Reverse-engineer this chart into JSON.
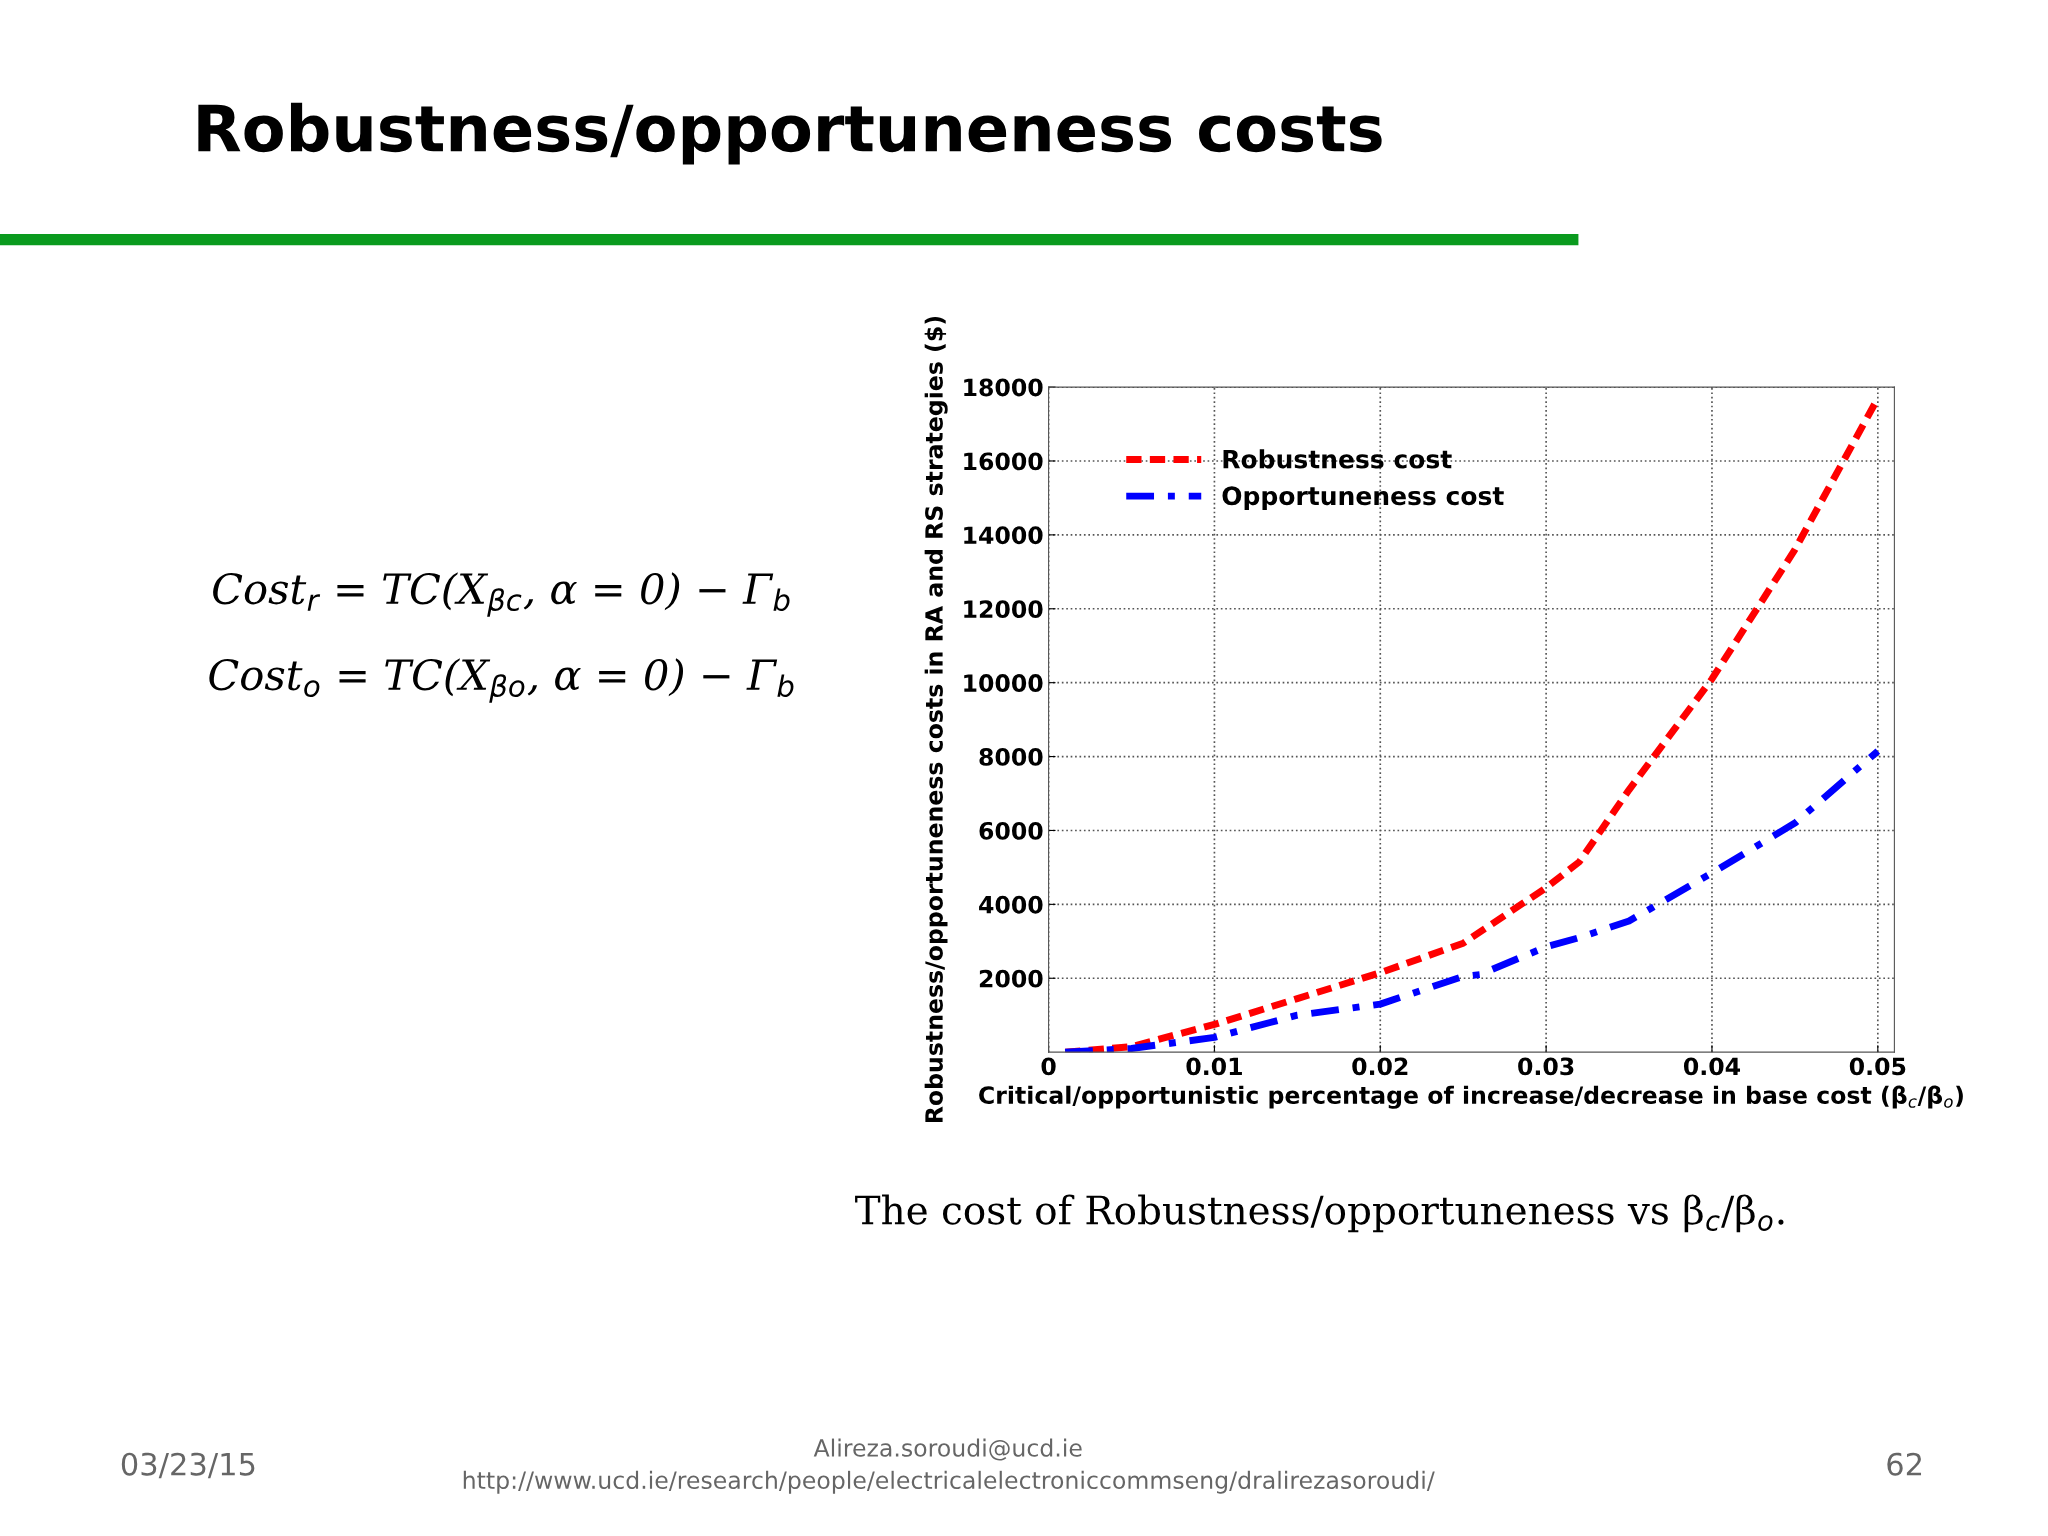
{
  "chart_data": {
    "type": "line",
    "title": "Robustness/opportuneness costs",
    "xlabel": "Critical/opportunistic percentage of increase/decrease in base cost (β$_{c}$/β$_{o}$)",
    "ylabel": "Robustness/opportuneness costs in RA and RS strategies ($)",
    "annotations": [
      "Cost$_{r}$ = TC(X$_{βc}$, α = 0) − Γ$_{b}$",
      "Cost$_{o}$ = TC(X$_{βo}$, α = 0) − Γ$_{b}$",
      "The cost of Robustness/opportuneness vs β$_{c}$/β$_{o}$.",
      "03/23/15",
      "Alireza.soroudi@ucd.ie",
      "http://www.ucd.ie/research/people/electricalelectroniccommseng/dralirezasoroudi/",
      "62"
    ],
    "series": [
      {
        "name": "Robustness cost",
        "color": "#ff0000",
        "line_style": "dashed",
        "x": [
          0.001,
          0.005,
          0.01,
          0.015,
          0.02,
          0.025,
          0.03,
          0.032,
          0.035,
          0.04,
          0.045,
          0.05
        ],
        "values": [
          0,
          150,
          750,
          1450,
          2150,
          2950,
          4450,
          5150,
          7100,
          10100,
          13600,
          17700
        ]
      },
      {
        "name": "Opportuneness cost",
        "color": "#0000ff",
        "line_style": "dashdot",
        "x": [
          0.001,
          0.005,
          0.01,
          0.015,
          0.02,
          0.025,
          0.026,
          0.03,
          0.032,
          0.035,
          0.04,
          0.045,
          0.05
        ],
        "values": [
          0,
          100,
          400,
          1000,
          1300,
          2050,
          2100,
          2850,
          3100,
          3550,
          4850,
          6200,
          8150
        ]
      }
    ],
    "xlim": [
      0,
      0.051
    ],
    "xticks": [
      0,
      0.01,
      0.02,
      0.03,
      0.04,
      0.05
    ],
    "ylim": [
      0,
      18000
    ],
    "yticks": [
      2000,
      4000,
      6000,
      8000,
      10000,
      12000,
      14000,
      16000,
      18000
    ],
    "grid": true,
    "legend": "top left"
  }
}
